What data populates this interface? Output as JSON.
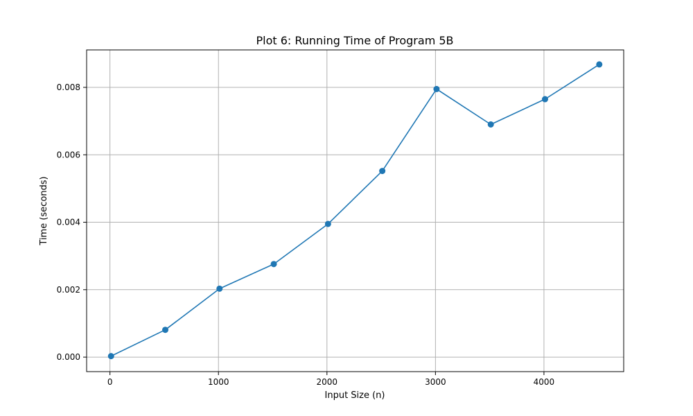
{
  "chart_data": {
    "type": "line",
    "title": "Plot 6: Running Time of Program 5B",
    "xlabel": "Input Size (n)",
    "ylabel": "Time (seconds)",
    "x": [
      10,
      510,
      1010,
      1510,
      2010,
      2510,
      3010,
      3510,
      4010,
      4510
    ],
    "series": [
      {
        "values": [
          3e-05,
          0.00081,
          0.00203,
          0.00276,
          0.00395,
          0.00552,
          0.00795,
          0.0069,
          0.00765,
          0.00868
        ]
      }
    ],
    "xlim": [
      -215,
      4735
    ],
    "ylim": [
      -0.00043,
      0.00911
    ],
    "xticks": [
      0,
      1000,
      2000,
      3000,
      4000
    ],
    "xtick_labels": [
      "0",
      "1000",
      "2000",
      "3000",
      "4000"
    ],
    "yticks": [
      0.0,
      0.002,
      0.004,
      0.006,
      0.008
    ],
    "ytick_labels": [
      "0.000",
      "0.002",
      "0.004",
      "0.006",
      "0.008"
    ],
    "grid": true,
    "marker": "circle",
    "color": "#1f77b4"
  }
}
